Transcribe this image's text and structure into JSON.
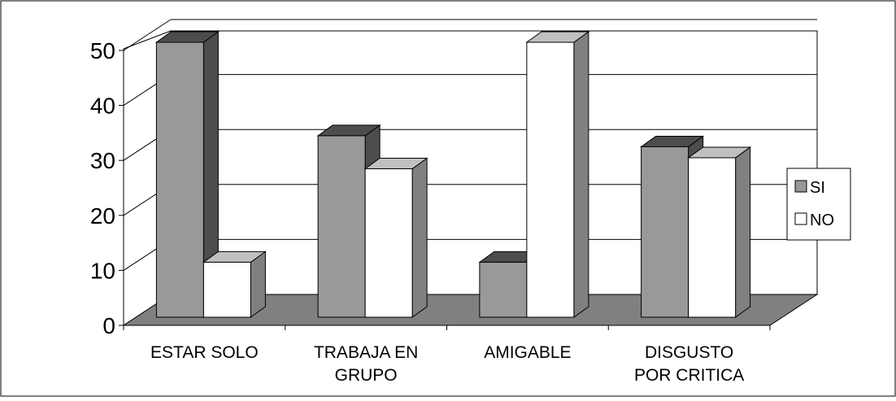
{
  "chart_data": {
    "type": "bar",
    "categories": [
      "ESTAR SOLO",
      "TRABAJA EN GRUPO",
      "AMIGABLE",
      "DISGUSTO POR CRITICA"
    ],
    "category_lines": [
      [
        "ESTAR SOLO"
      ],
      [
        "TRABAJA EN",
        "GRUPO"
      ],
      [
        "AMIGABLE"
      ],
      [
        "DISGUSTO",
        "POR CRITICA"
      ]
    ],
    "series": [
      {
        "name": "SI",
        "values": [
          50,
          33,
          10,
          31
        ],
        "color": "#999999",
        "side_color": "#4d4d4d",
        "top_color": "#4d4d4d"
      },
      {
        "name": "NO",
        "values": [
          10,
          27,
          50,
          29
        ],
        "color": "#ffffff",
        "side_color": "#808080",
        "top_color": "#c0c0c0"
      }
    ],
    "ylim": [
      0,
      50
    ],
    "yticks": [
      "0",
      "10",
      "20",
      "30",
      "40",
      "50"
    ],
    "grid": true,
    "three_d": true,
    "legend": "right",
    "floor_color": "#808080",
    "title": "",
    "xlabel": "",
    "ylabel": ""
  }
}
